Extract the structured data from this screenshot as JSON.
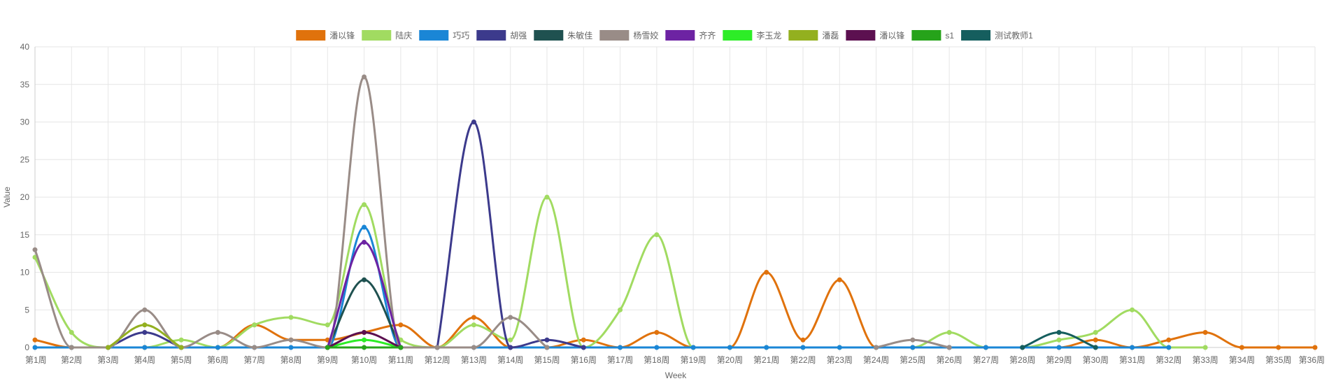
{
  "chart_data": {
    "type": "line",
    "title": "",
    "xlabel": "Week",
    "ylabel": "Value",
    "ylim": [
      0,
      40
    ],
    "yticks": [
      0,
      5,
      10,
      15,
      20,
      25,
      30,
      35,
      40
    ],
    "grid": true,
    "legend_position": "top-center",
    "categories": [
      "第1周",
      "第2周",
      "第3周",
      "第4周",
      "第5周",
      "第6周",
      "第7周",
      "第8周",
      "第9周",
      "第10周",
      "第11周",
      "第12周",
      "第13周",
      "第14周",
      "第15周",
      "第16周",
      "第17周",
      "第18周",
      "第19周",
      "第20周",
      "第21周",
      "第22周",
      "第23周",
      "第24周",
      "第25周",
      "第26周",
      "第27周",
      "第28周",
      "第29周",
      "第30周",
      "第31周",
      "第32周",
      "第33周",
      "第34周",
      "第35周",
      "第36周"
    ],
    "series": [
      {
        "name": "潘以锋",
        "color": "#e0720c",
        "values": [
          1,
          0,
          0,
          0,
          0,
          0,
          3,
          1,
          1,
          2,
          3,
          0,
          4,
          0,
          0,
          1,
          0,
          2,
          0,
          0,
          10,
          1,
          9,
          0,
          0,
          0,
          0,
          0,
          0,
          1,
          0,
          1,
          2,
          0,
          0,
          0
        ]
      },
      {
        "name": "陆庆",
        "color": "#a1db61",
        "values": [
          12,
          2,
          0,
          0,
          1,
          0,
          3,
          4,
          3,
          19,
          1,
          0,
          3,
          1,
          20,
          0,
          5,
          15,
          0,
          0,
          0,
          0,
          0,
          0,
          0,
          2,
          0,
          0,
          1,
          2,
          5,
          0,
          0,
          null,
          null,
          null
        ]
      },
      {
        "name": "巧巧",
        "color": "#1a86d6",
        "values": [
          0,
          0,
          0,
          0,
          0,
          0,
          0,
          0,
          0,
          16,
          0,
          0,
          0,
          0,
          0,
          0,
          0,
          0,
          0,
          0,
          0,
          0,
          0,
          0,
          0,
          0,
          0,
          0,
          0,
          0,
          0,
          0,
          null,
          null,
          null,
          null
        ]
      },
      {
        "name": "胡强",
        "color": "#3c3a8c",
        "values": [
          null,
          null,
          0,
          2,
          0,
          null,
          null,
          null,
          null,
          null,
          null,
          0,
          30,
          0,
          1,
          0,
          null,
          null,
          null,
          null,
          null,
          null,
          null,
          null,
          null,
          null,
          null,
          null,
          null,
          null,
          null,
          null,
          null,
          null,
          null,
          null
        ]
      },
      {
        "name": "朱敏佳",
        "color": "#1f5150",
        "values": [
          null,
          null,
          null,
          null,
          null,
          null,
          null,
          null,
          0,
          9,
          0,
          null,
          null,
          null,
          null,
          null,
          null,
          null,
          null,
          null,
          null,
          null,
          null,
          null,
          null,
          null,
          null,
          null,
          null,
          null,
          null,
          null,
          null,
          null,
          null,
          null
        ]
      },
      {
        "name": "杨雪姣",
        "color": "#998c87",
        "values": [
          13,
          0,
          0,
          5,
          0,
          2,
          0,
          1,
          0,
          36,
          0,
          0,
          0,
          4,
          0,
          null,
          null,
          null,
          null,
          null,
          null,
          null,
          null,
          0,
          1,
          0,
          null,
          null,
          null,
          null,
          null,
          null,
          null,
          null,
          null,
          null
        ]
      },
      {
        "name": "齐齐",
        "color": "#6d23a3",
        "values": [
          null,
          null,
          null,
          null,
          null,
          null,
          null,
          null,
          0,
          14,
          0,
          null,
          null,
          null,
          null,
          null,
          null,
          null,
          null,
          null,
          null,
          null,
          null,
          null,
          null,
          null,
          null,
          null,
          null,
          null,
          null,
          null,
          null,
          null,
          null,
          null
        ]
      },
      {
        "name": "李玉龙",
        "color": "#2ded27",
        "values": [
          null,
          null,
          null,
          null,
          null,
          null,
          null,
          null,
          0,
          1,
          0,
          null,
          null,
          null,
          null,
          null,
          null,
          null,
          null,
          null,
          null,
          null,
          null,
          null,
          null,
          null,
          null,
          null,
          null,
          null,
          null,
          null,
          null,
          null,
          null,
          null
        ]
      },
      {
        "name": "潘磊",
        "color": "#93b01f",
        "values": [
          null,
          null,
          0,
          3,
          0,
          null,
          null,
          null,
          null,
          null,
          null,
          null,
          null,
          null,
          null,
          null,
          null,
          null,
          null,
          null,
          null,
          null,
          null,
          null,
          null,
          null,
          null,
          null,
          null,
          null,
          null,
          null,
          null,
          null,
          null,
          null
        ]
      },
      {
        "name": "潘以锋",
        "color": "#5c1050",
        "values": [
          null,
          null,
          null,
          null,
          null,
          null,
          null,
          null,
          0,
          2,
          0,
          null,
          null,
          null,
          null,
          null,
          null,
          null,
          null,
          null,
          null,
          null,
          null,
          null,
          null,
          null,
          null,
          null,
          null,
          null,
          null,
          null,
          null,
          null,
          null,
          null
        ]
      },
      {
        "name": "s1",
        "color": "#26a31a",
        "values": [
          null,
          null,
          null,
          null,
          null,
          null,
          null,
          null,
          0,
          0,
          0,
          null,
          null,
          null,
          null,
          null,
          null,
          null,
          null,
          null,
          null,
          null,
          null,
          null,
          null,
          null,
          null,
          null,
          null,
          null,
          null,
          null,
          null,
          null,
          null,
          null
        ]
      },
      {
        "name": "测试教师1",
        "color": "#155e5e",
        "values": [
          null,
          null,
          null,
          null,
          null,
          null,
          null,
          null,
          null,
          null,
          null,
          null,
          null,
          null,
          null,
          null,
          null,
          null,
          null,
          null,
          null,
          null,
          null,
          null,
          null,
          null,
          null,
          0,
          2,
          0,
          null,
          null,
          null,
          null,
          null,
          null
        ]
      }
    ]
  }
}
